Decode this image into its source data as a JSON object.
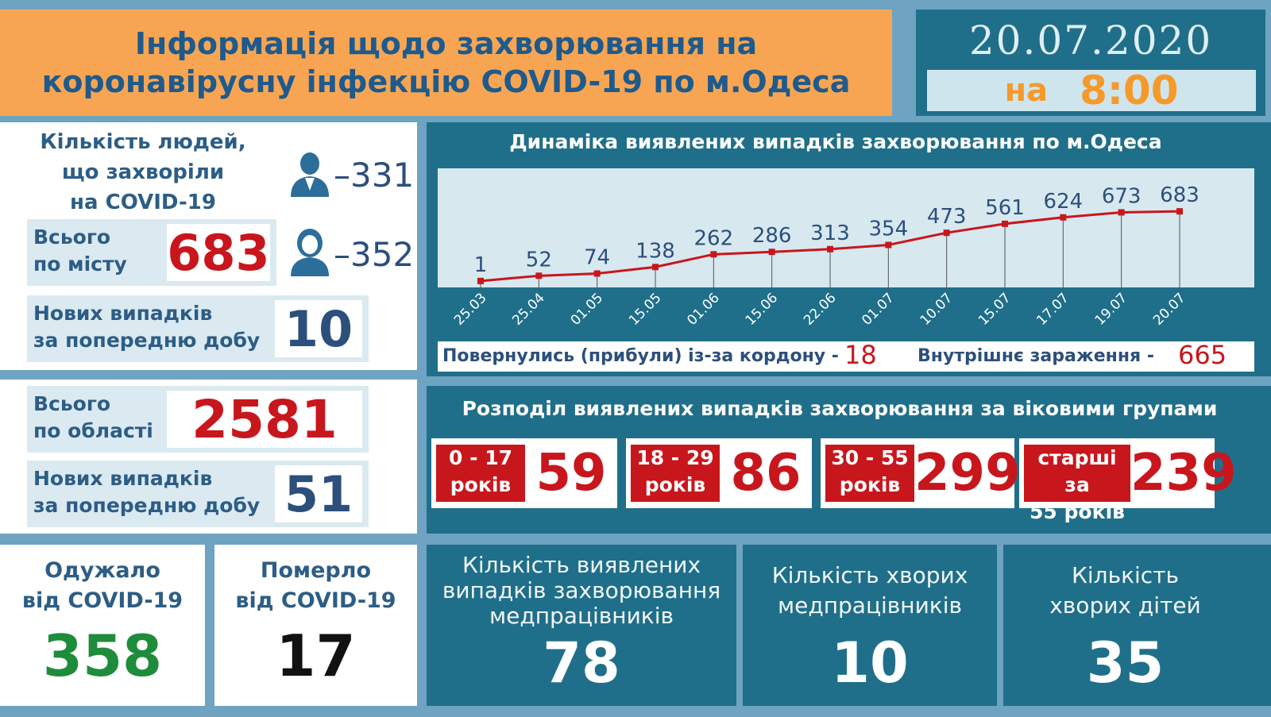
{
  "header": {
    "title_line1": "Інформація щодо захворювання на",
    "title_line2": "коронавірусну інфекцію COVID-19 по м.Одеса",
    "date": "20.07.2020",
    "time_prefix": "на",
    "time": "8:00"
  },
  "city": {
    "sick_label_line1": "Кількість людей,",
    "sick_label_line2": "що захворіли",
    "sick_label_line3": "на COVID-19",
    "men_count": "–331",
    "women_count": "–352",
    "total_label_line1": "Всього",
    "total_label_line2": "по місту",
    "total_value": "683",
    "new_label_line1": "Нових випадків",
    "new_label_line2": "за попередню добу",
    "new_value": "10"
  },
  "region": {
    "total_label_line1": "Всього",
    "total_label_line2": "по області",
    "total_value": "2581",
    "new_label_line1": "Нових випадків",
    "new_label_line2": "за попередню добу",
    "new_value": "51"
  },
  "outcomes": {
    "recovered_label_line1": "Одужало",
    "recovered_label_line2": "від COVID-19",
    "recovered_value": "358",
    "died_label_line1": "Померло",
    "died_label_line2": "від COVID-19",
    "died_value": "17"
  },
  "chart_data": {
    "type": "line",
    "title": "Динаміка виявлених випадків захворювання по м.Одеса",
    "categories": [
      "25.03",
      "25.04",
      "01.05",
      "15.05",
      "01.06",
      "15.06",
      "22.06",
      "01.07",
      "10.07",
      "15.07",
      "17.07",
      "19.07",
      "20.07"
    ],
    "series": [
      {
        "values": [
          1,
          52,
          74,
          138,
          262,
          286,
          313,
          354,
          473,
          561,
          624,
          673,
          683
        ]
      }
    ],
    "ylim": [
      0,
      700
    ],
    "grid": false,
    "colors": {
      "line": "#c8161d",
      "labels": "#2c4f7c"
    }
  },
  "sources": {
    "abroad_label": "Повернулись (прибули) із-за кордону -",
    "abroad_value": "18",
    "internal_label": "Внутрішнє зараження  -",
    "internal_value": "665"
  },
  "age_groups": {
    "title": "Розподіл виявлених випадків захворювання за віковими групами",
    "groups": [
      {
        "label_line1": "0 - 17",
        "label_line2": "років",
        "value": "59"
      },
      {
        "label_line1": "18 - 29",
        "label_line2": "років",
        "value": "86"
      },
      {
        "label_line1": "30 - 55",
        "label_line2": "років",
        "value": "299"
      },
      {
        "label_line1": "старші за",
        "label_line2": "55 років",
        "value": "239"
      }
    ]
  },
  "medical": {
    "detected_label_line1": "Кількість виявлених",
    "detected_label_line2": "випадків захворювання",
    "detected_label_line3": "медпрацівників",
    "detected_value": "78",
    "sick_label_line1": "Кількість хворих",
    "sick_label_line2": "медпрацівників",
    "sick_value": "10",
    "children_label_line1": "Кількість",
    "children_label_line2": "хворих дітей",
    "children_value": "35"
  },
  "icons": [
    "man-icon",
    "woman-icon"
  ]
}
